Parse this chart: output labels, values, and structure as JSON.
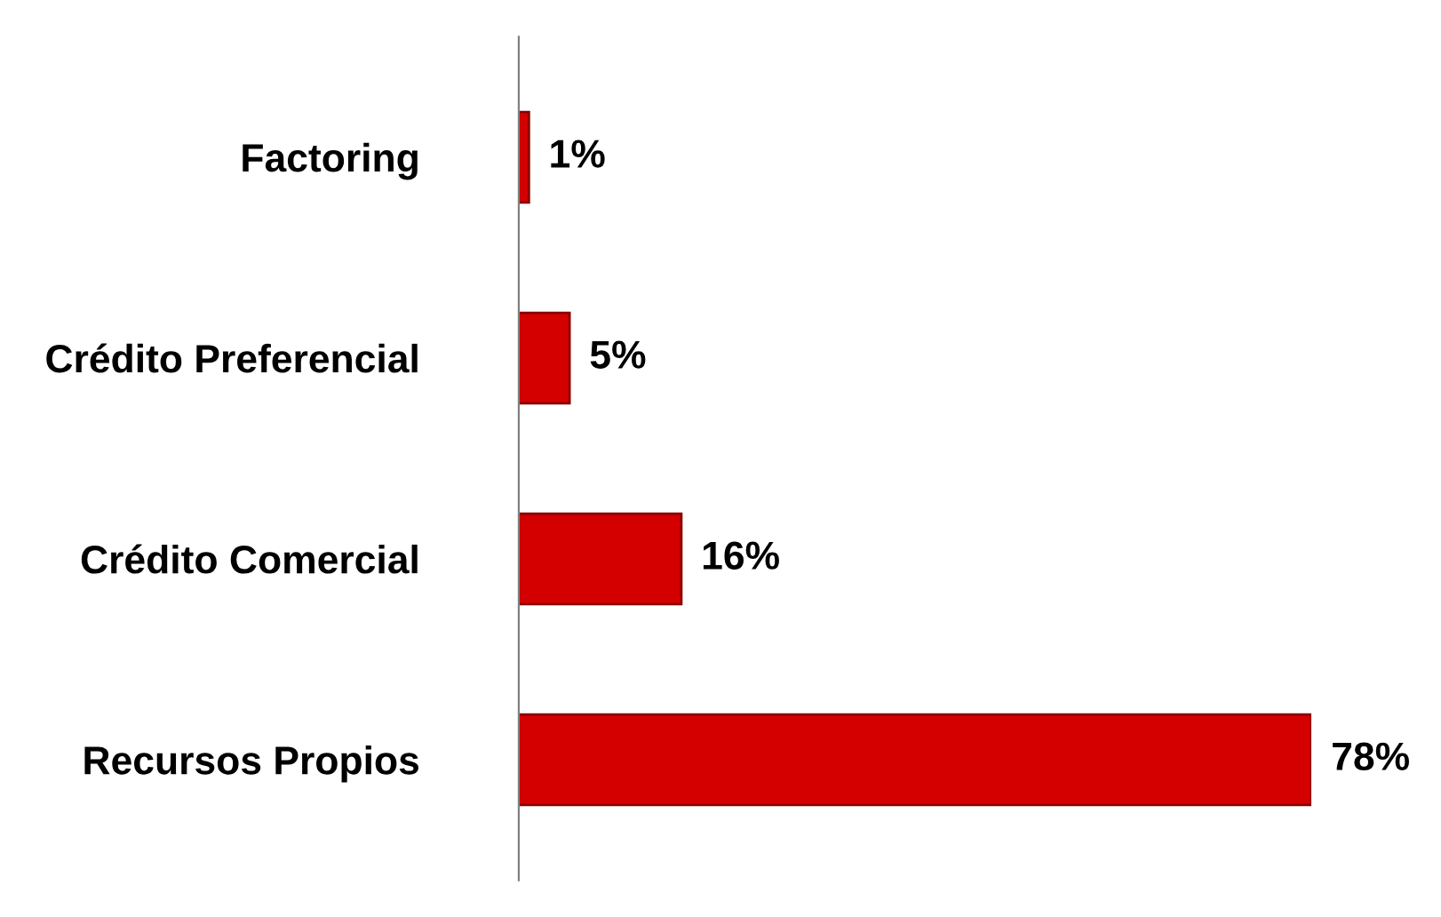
{
  "chart_data": {
    "type": "bar",
    "orientation": "horizontal",
    "categories": [
      "Factoring",
      "Crédito Preferencial",
      "Crédito Comercial",
      "Recursos Propios"
    ],
    "values": [
      1,
      5,
      16,
      78
    ],
    "value_labels": [
      "1%",
      "5%",
      "16%",
      "78%"
    ],
    "color": "#d40000",
    "tick_labels": "y",
    "grid": false
  }
}
